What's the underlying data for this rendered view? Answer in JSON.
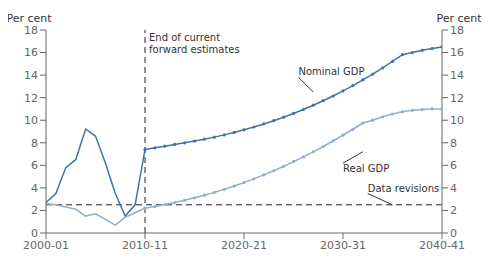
{
  "chart_data": {
    "type": "line",
    "ylabel": "Per cent",
    "y2label": "Per cent",
    "xlim": [
      0,
      40
    ],
    "xticks": [
      {
        "value": 0,
        "label": "2000-01"
      },
      {
        "value": 10,
        "label": "2010-11"
      },
      {
        "value": 20,
        "label": "2020-21"
      },
      {
        "value": 30,
        "label": "2030-31"
      },
      {
        "value": 40,
        "label": "2040-41"
      }
    ],
    "ylim": [
      0,
      18
    ],
    "yticks": [
      0,
      2,
      4,
      6,
      8,
      10,
      12,
      14,
      16,
      18
    ],
    "y2lim": [
      0,
      18
    ],
    "y2ticks": [
      0,
      2,
      4,
      6,
      8,
      10,
      12,
      14,
      16,
      18
    ],
    "grid": false,
    "series": [
      {
        "name": "Nominal GDP",
        "color": "#4472a8",
        "marker": "none",
        "x": [
          0,
          1,
          2,
          3,
          4,
          5,
          6,
          7,
          8,
          9,
          10
        ],
        "values": [
          2.7,
          3.5,
          5.8,
          6.5,
          9.2,
          8.6,
          6.2,
          3.5,
          1.5,
          2.5,
          7.4
        ]
      },
      {
        "name": "Nominal GDP",
        "color": "#4472a8",
        "marker": "circle",
        "x": [
          10,
          11,
          12,
          13,
          14,
          15,
          16,
          17,
          18,
          19,
          20,
          21,
          22,
          23,
          24,
          25,
          26,
          27,
          28,
          29,
          30,
          31,
          32,
          33,
          34,
          35,
          36,
          37,
          38,
          39,
          40
        ],
        "values": [
          7.4,
          7.55,
          7.7,
          7.85,
          8.0,
          8.15,
          8.32,
          8.5,
          8.7,
          8.92,
          9.15,
          9.4,
          9.67,
          9.96,
          10.27,
          10.6,
          10.95,
          11.33,
          11.73,
          12.15,
          12.6,
          13.07,
          13.57,
          14.09,
          14.64,
          15.21,
          15.81,
          16.0,
          16.2,
          16.35,
          16.5
        ]
      },
      {
        "name": "Real GDP",
        "color": "#92aecb",
        "marker": "none",
        "x": [
          0,
          1,
          2,
          3,
          4,
          5,
          6,
          7,
          8,
          9,
          10
        ],
        "values": [
          2.6,
          2.5,
          2.3,
          2.1,
          1.5,
          1.7,
          1.2,
          0.7,
          1.4,
          1.8,
          2.2
        ]
      },
      {
        "name": "Real GDP",
        "color": "#92aecb",
        "marker": "circle",
        "x": [
          10,
          11,
          12,
          13,
          14,
          15,
          16,
          17,
          18,
          19,
          20,
          21,
          22,
          23,
          24,
          25,
          26,
          27,
          28,
          29,
          30,
          31,
          32,
          33,
          34,
          35,
          36,
          37,
          38,
          39,
          40
        ],
        "values": [
          2.2,
          2.35,
          2.52,
          2.7,
          2.9,
          3.12,
          3.35,
          3.6,
          3.87,
          4.16,
          4.47,
          4.8,
          5.15,
          5.52,
          5.91,
          6.32,
          6.75,
          7.2,
          7.67,
          8.16,
          8.67,
          9.2,
          9.75,
          10.0,
          10.3,
          10.55,
          10.75,
          10.88,
          10.95,
          11.0,
          11.0
        ]
      }
    ],
    "hlines": [
      {
        "y": 2.5,
        "color": "#222222",
        "line_style": "dashed"
      }
    ],
    "vlines": [
      {
        "x": 10,
        "label": "End of current\nforward estimates",
        "color": "#222222",
        "line_style": "dashed"
      }
    ],
    "annotations": [
      {
        "text": "Nominal GDP",
        "x": 27,
        "y": 12.5,
        "text_x": 25.5,
        "text_y": 13.8
      },
      {
        "text": "Real GDP",
        "x": 32,
        "y": 7.2,
        "text_x": 30,
        "text_y": 6.2
      },
      {
        "text": "Data revisions",
        "x": 35,
        "y": 2.5,
        "text_x": 32.5,
        "text_y": 3.5
      }
    ]
  }
}
